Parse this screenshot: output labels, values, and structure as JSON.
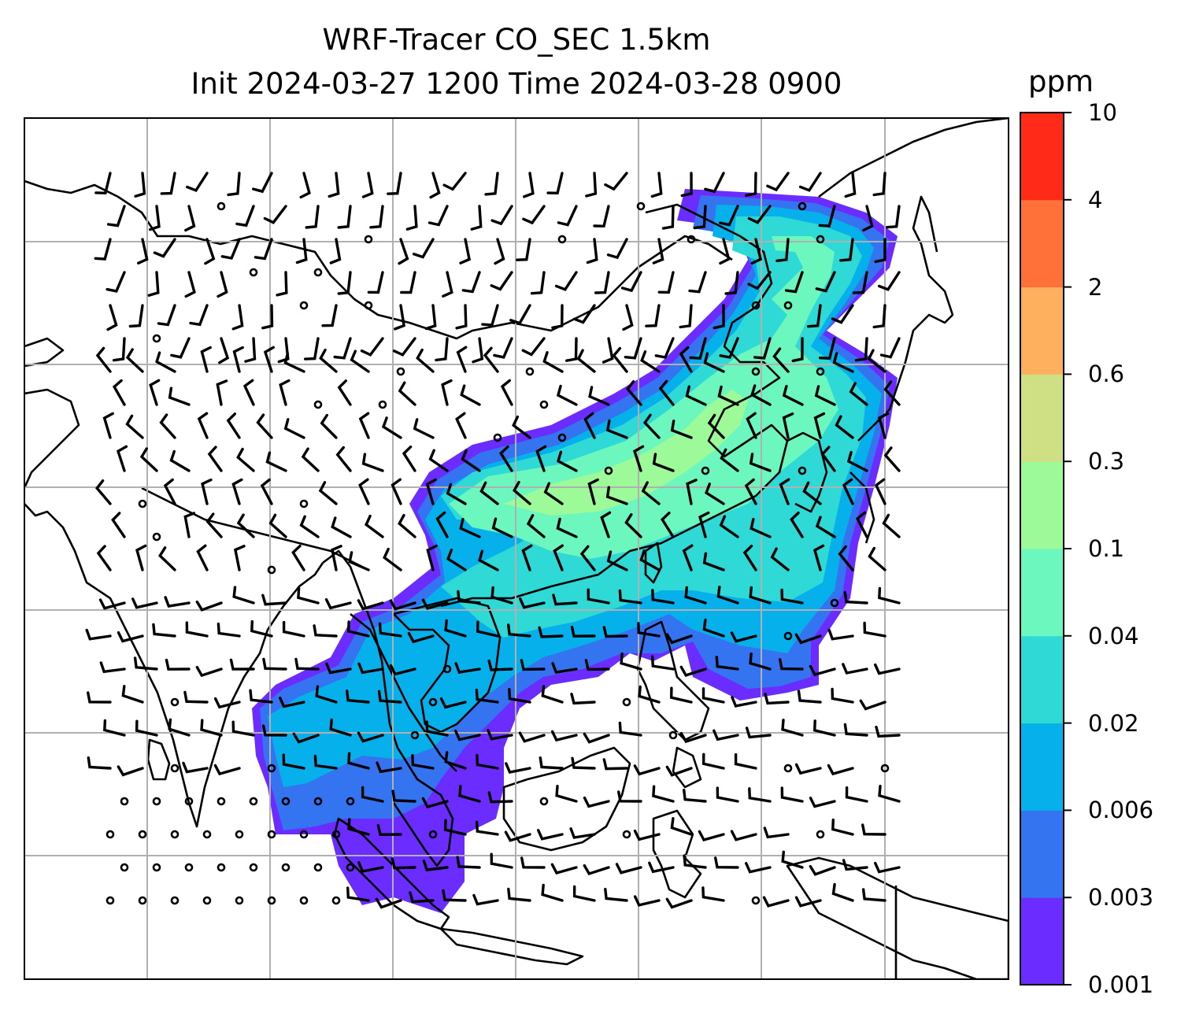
{
  "title": {
    "line1": "WRF-Tracer CO_SEC 1.5km",
    "line2": "Init 2024-03-27 1200 Time 2024-03-28 0900"
  },
  "colorbar": {
    "unit": "ppm",
    "levels": [
      "0.001",
      "0.003",
      "0.006",
      "0.02",
      "0.04",
      "0.1",
      "0.3",
      "0.6",
      "2",
      "4",
      "10"
    ],
    "colors": [
      "#6a2cff",
      "#3574f0",
      "#06b0ea",
      "#2ed9d6",
      "#6bf7be",
      "#9cfb98",
      "#cfe084",
      "#ffb05e",
      "#ff7138",
      "#ff2a17"
    ]
  },
  "map": {
    "plume_levels": [
      0.001,
      0.003,
      0.006,
      0.02,
      0.04,
      0.1
    ],
    "background": "#ffffff",
    "coastline_color": "#000000",
    "gridline_color": "#b0b0b0"
  },
  "icons": {
    "wind_barbs": "wind-barb-icon",
    "calm_wind": "calm-circle-icon"
  }
}
